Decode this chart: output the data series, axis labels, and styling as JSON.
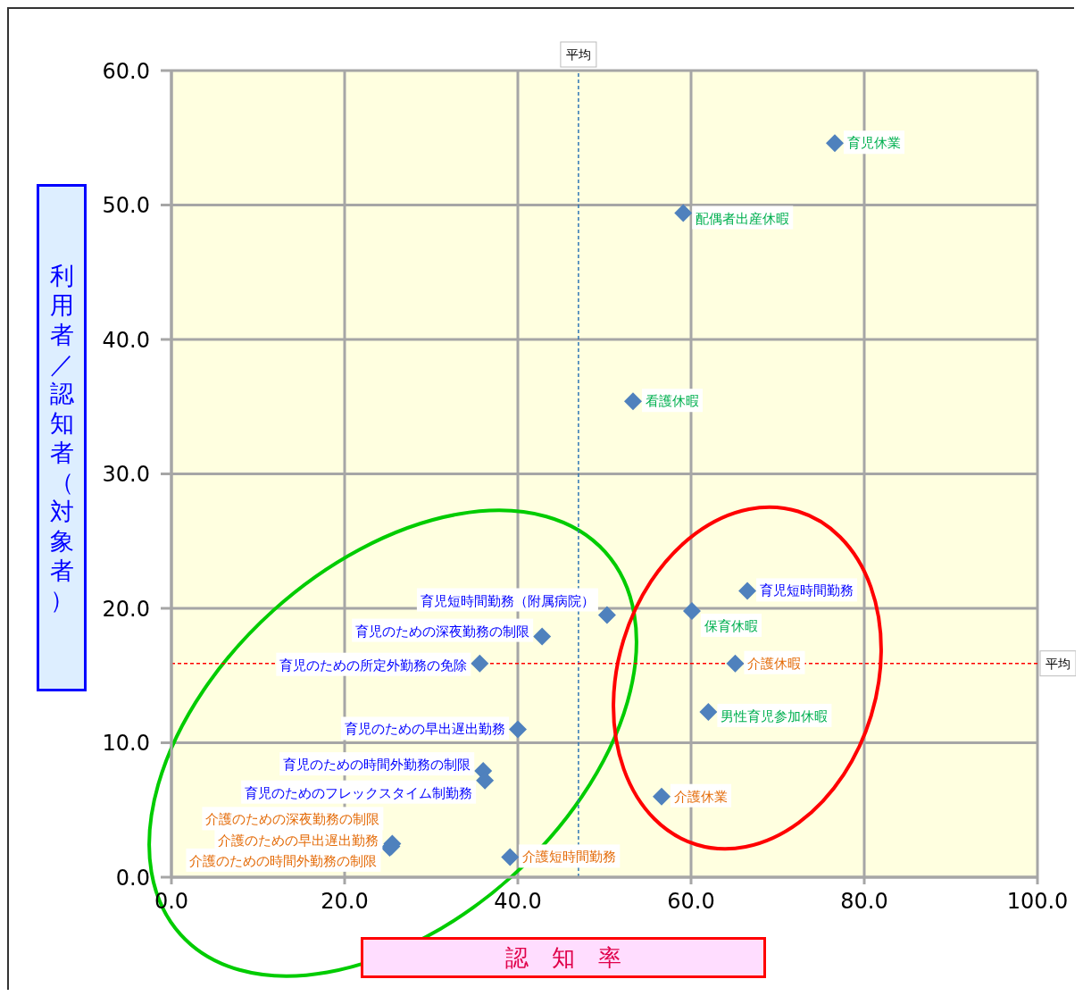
{
  "chart_data": {
    "type": "scatter",
    "xlabel": "認　知　率",
    "ylabel": "利用者／認知者（対象者）",
    "marker": "diamond",
    "grid": true,
    "legend": false,
    "xlim": [
      0,
      100
    ],
    "xticks": [
      {
        "value": 0,
        "label": "0.0"
      },
      {
        "value": 20,
        "label": "20.0"
      },
      {
        "value": 40,
        "label": "40.0"
      },
      {
        "value": 60,
        "label": "60.0"
      },
      {
        "value": 80,
        "label": "80.0"
      },
      {
        "value": 100,
        "label": "100.0"
      }
    ],
    "ylim": [
      0,
      60
    ],
    "yticks": [
      {
        "value": 0,
        "label": "0.0"
      },
      {
        "value": 10,
        "label": "10.0"
      },
      {
        "value": 20,
        "label": "20.0"
      },
      {
        "value": 30,
        "label": "30.0"
      },
      {
        "value": 40,
        "label": "40.0"
      },
      {
        "value": 50,
        "label": "50.0"
      },
      {
        "value": 60,
        "label": "60.0"
      }
    ],
    "series": [
      {
        "color": "#4f81bd",
        "x": [
          76.6,
          59.1,
          53.3,
          60.1,
          62.0
        ],
        "values": [
          54.6,
          49.4,
          35.4,
          19.8,
          12.3
        ],
        "value_labels": [
          "育児休業",
          "配偶者出産休暇",
          "看護休暇",
          "保育休暇",
          "男性育児参加休暇"
        ]
      },
      {
        "color": "#4f81bd",
        "x": [
          66.5,
          50.3,
          42.8,
          35.6,
          40.0,
          36.0,
          36.2
        ],
        "values": [
          21.3,
          19.5,
          17.9,
          15.9,
          11.0,
          7.9,
          7.2
        ],
        "value_labels": [
          "育児短時間勤務",
          "育児短時間勤務（附属病院）",
          "育児のための深夜勤務の制限",
          "育児のための所定外勤務の免除",
          "育児のための早出遅出勤務",
          "育児のための時間外勤務の制限",
          "育児のためのフレックスタイム制勤務"
        ]
      },
      {
        "color": "#4f81bd",
        "x": [
          65.1,
          56.6,
          39.1,
          25.5,
          25.4,
          25.2
        ],
        "values": [
          15.9,
          6.0,
          1.5,
          2.5,
          2.3,
          2.2
        ],
        "value_labels": [
          "介護休暇",
          "介護休業",
          "介護短時間勤務",
          "介護のための深夜勤務の制限",
          "介護のための早出遅出勤務",
          "介護のための時間外勤務の制限"
        ]
      }
    ],
    "ref_lines": [
      {
        "axis": "x",
        "value": 47.0,
        "label": "平均",
        "color": "#2e75b6",
        "line_style": "dashed"
      },
      {
        "axis": "y",
        "value": 15.9,
        "label": "平均",
        "color": "#ff0000",
        "line_style": "dashed"
      }
    ]
  }
}
